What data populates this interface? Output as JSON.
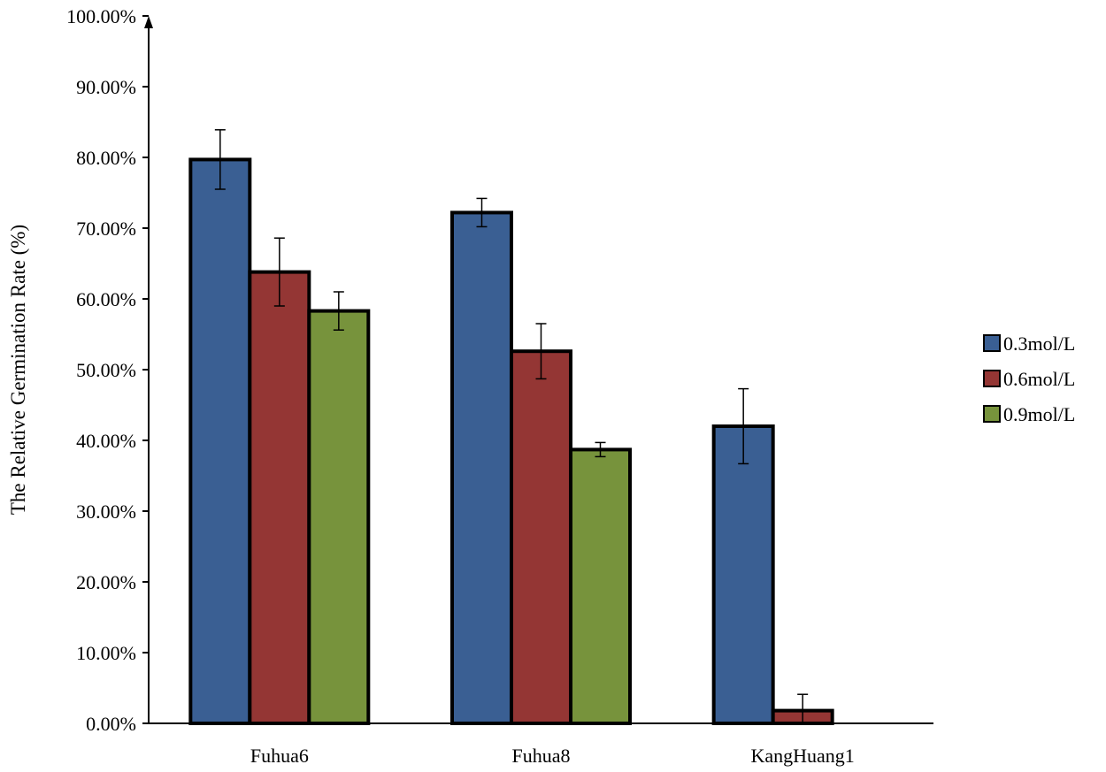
{
  "chart_data": {
    "type": "bar",
    "title": "",
    "xlabel": "",
    "ylabel": "The Relative Germination Rate (%)",
    "ylim": [
      0,
      100
    ],
    "y_ticks": [
      "0.00%",
      "10.00%",
      "20.00%",
      "30.00%",
      "40.00%",
      "50.00%",
      "60.00%",
      "70.00%",
      "80.00%",
      "90.00%",
      "100.00%"
    ],
    "categories": [
      "Fuhua6",
      "Fuhua8",
      "KangHuang1"
    ],
    "series": [
      {
        "name": "0.3mol/L",
        "color": "#3a5f93",
        "values": [
          79.7,
          72.2,
          42.0
        ],
        "errors": [
          4.2,
          2.0,
          5.3
        ]
      },
      {
        "name": "0.6mol/L",
        "color": "#943634",
        "values": [
          63.8,
          52.6,
          1.8
        ],
        "errors": [
          4.8,
          3.9,
          2.3
        ]
      },
      {
        "name": "0.9mol/L",
        "color": "#77933c",
        "values": [
          58.3,
          38.7,
          0.0
        ],
        "errors": [
          2.7,
          1.0,
          0.0
        ]
      }
    ],
    "legend": "right",
    "grid": false
  }
}
